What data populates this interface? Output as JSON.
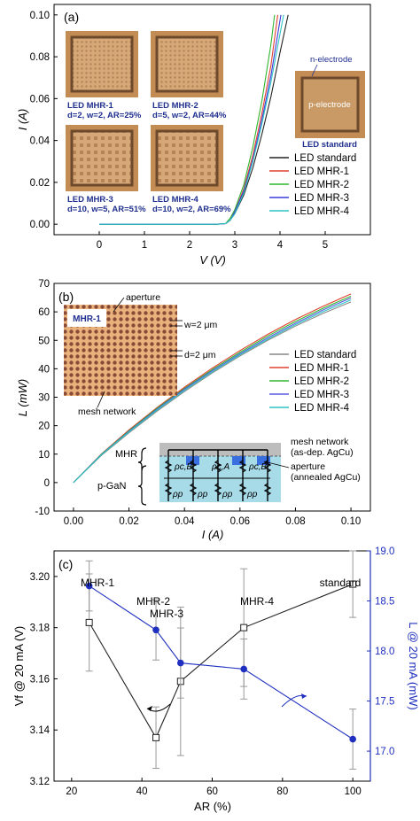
{
  "chart_data": [
    {
      "type": "line",
      "panel_label": "(a)",
      "xlabel": "V (V)",
      "ylabel": "I (A)",
      "xlim": [
        -1,
        6
      ],
      "ylim": [
        -0.005,
        0.105
      ],
      "xticks": [
        0,
        1,
        2,
        3,
        4,
        5
      ],
      "yticks": [
        0.0,
        0.02,
        0.04,
        0.06,
        0.08,
        0.1
      ],
      "ytick_labels": [
        "0.00",
        "0.02",
        "0.04",
        "0.06",
        "0.08",
        "0.10"
      ],
      "legend_placement": "bottom-right",
      "series": [
        {
          "name": "LED standard",
          "color": "#222222",
          "x": [
            0,
            2.6,
            2.8,
            2.9,
            3.0,
            3.2,
            3.4,
            3.6,
            3.8,
            4.0,
            4.18
          ],
          "y": [
            0,
            0,
            0.0003,
            0.002,
            0.005,
            0.014,
            0.027,
            0.043,
            0.061,
            0.082,
            0.1
          ]
        },
        {
          "name": "LED MHR-1",
          "color": "#e0412f",
          "x": [
            0,
            2.6,
            2.8,
            2.9,
            3.0,
            3.2,
            3.4,
            3.6,
            3.8,
            3.95
          ],
          "y": [
            0,
            0,
            0.0003,
            0.002,
            0.006,
            0.017,
            0.033,
            0.053,
            0.076,
            0.1
          ]
        },
        {
          "name": "LED MHR-2",
          "color": "#2fb62f",
          "x": [
            0,
            2.6,
            2.8,
            2.9,
            3.0,
            3.2,
            3.4,
            3.6,
            3.8,
            3.88
          ],
          "y": [
            0,
            0,
            0.0004,
            0.003,
            0.007,
            0.019,
            0.037,
            0.059,
            0.086,
            0.1
          ]
        },
        {
          "name": "LED MHR-3",
          "color": "#3a3ad8",
          "x": [
            0,
            2.6,
            2.8,
            2.9,
            3.0,
            3.2,
            3.4,
            3.6,
            3.8,
            4.02
          ],
          "y": [
            0,
            0,
            0.0003,
            0.002,
            0.006,
            0.016,
            0.031,
            0.05,
            0.071,
            0.1
          ]
        },
        {
          "name": "LED MHR-4",
          "color": "#2ec4c4",
          "x": [
            0,
            2.6,
            2.8,
            2.9,
            3.0,
            3.2,
            3.4,
            3.6,
            3.8,
            4.08
          ],
          "y": [
            0,
            0,
            0.0003,
            0.002,
            0.005,
            0.015,
            0.03,
            0.048,
            0.068,
            0.1
          ]
        }
      ],
      "insets": [
        {
          "label": "LED MHR-1",
          "params": "d=2, w=2, AR=25%"
        },
        {
          "label": "LED MHR-2",
          "params": "d=5, w=2, AR=44%"
        },
        {
          "label": "LED MHR-3",
          "params": "d=10, w=5, AR=51%"
        },
        {
          "label": "LED MHR-4",
          "params": "d=10, w=2, AR=69%"
        },
        {
          "label": "LED standard",
          "params": ""
        }
      ],
      "annotations": {
        "n_electrode": "n-electrode",
        "p_electrode": "p-electrode"
      }
    },
    {
      "type": "line",
      "panel_label": "(b)",
      "xlabel": "I (A)",
      "ylabel": "L (mW)",
      "xlim": [
        -0.007,
        0.107
      ],
      "ylim": [
        -10,
        70
      ],
      "xticks": [
        0.0,
        0.02,
        0.04,
        0.06,
        0.08,
        0.1
      ],
      "xtick_labels": [
        "0.00",
        "0.02",
        "0.04",
        "0.06",
        "0.08",
        "0.10"
      ],
      "yticks": [
        -10,
        0,
        10,
        20,
        30,
        40,
        50,
        60,
        70
      ],
      "legend_placement": "center-right",
      "series": [
        {
          "name": "LED standard",
          "color": "#888888",
          "x": [
            0,
            0.01,
            0.02,
            0.03,
            0.04,
            0.05,
            0.06,
            0.07,
            0.08,
            0.09,
            0.1
          ],
          "y": [
            0,
            9.5,
            17.5,
            25,
            32,
            38.5,
            44.5,
            50,
            55,
            59.5,
            63.5
          ]
        },
        {
          "name": "LED MHR-1",
          "color": "#e0412f",
          "x": [
            0,
            0.01,
            0.02,
            0.03,
            0.04,
            0.05,
            0.06,
            0.07,
            0.08,
            0.09,
            0.1
          ],
          "y": [
            0,
            10,
            18.5,
            26.3,
            33.5,
            40.2,
            46.4,
            52.1,
            57.3,
            62,
            66.3
          ]
        },
        {
          "name": "LED MHR-2",
          "color": "#2fb62f",
          "x": [
            0,
            0.01,
            0.02,
            0.03,
            0.04,
            0.05,
            0.06,
            0.07,
            0.08,
            0.09,
            0.1
          ],
          "y": [
            0,
            9.9,
            18.2,
            26,
            33.1,
            39.7,
            45.8,
            51.5,
            56.6,
            61.3,
            65.5
          ]
        },
        {
          "name": "LED MHR-3",
          "color": "#5a5ae0",
          "x": [
            0,
            0.01,
            0.02,
            0.03,
            0.04,
            0.05,
            0.06,
            0.07,
            0.08,
            0.09,
            0.1
          ],
          "y": [
            0,
            9.8,
            18,
            25.7,
            32.8,
            39.3,
            45.3,
            50.9,
            56,
            60.7,
            64.9
          ]
        },
        {
          "name": "LED MHR-4",
          "color": "#2ec4c4",
          "x": [
            0,
            0.01,
            0.02,
            0.03,
            0.04,
            0.05,
            0.06,
            0.07,
            0.08,
            0.09,
            0.1
          ],
          "y": [
            0,
            9.7,
            17.8,
            25.4,
            32.4,
            38.9,
            44.9,
            50.4,
            55.5,
            60.1,
            64.2
          ]
        }
      ],
      "inset_photo": {
        "label": "MHR-1",
        "aperture": "aperture",
        "w": "w=2 μm",
        "d": "d=2 μm",
        "mesh": "mesh network"
      },
      "inset_schematic": {
        "mhr_label": "MHR",
        "pgan_label": "p-GaN",
        "mesh_label_1": "mesh network",
        "mesh_label_2": "(as-dep. AgCu)",
        "aperture_label_1": "aperture",
        "aperture_label_2": "(annealed AgCu)",
        "rho_top": [
          "ρc,B",
          "ρc,A",
          "ρc,B"
        ],
        "rho_bottom": [
          "ρp",
          "ρp",
          "ρp",
          "ρp"
        ]
      }
    },
    {
      "type": "line",
      "panel_label": "(c)",
      "xlabel": "AR (%)",
      "ylabel_left": "Vf @ 20 mA (V)",
      "ylabel_right": "L @ 20 mA (mW)",
      "xlim": [
        15,
        105
      ],
      "ylim_left": [
        3.12,
        3.21
      ],
      "ylim_right": [
        16.7,
        19.0
      ],
      "xticks": [
        20,
        40,
        60,
        80,
        100
      ],
      "yticks_left": [
        3.12,
        3.14,
        3.16,
        3.18,
        3.2
      ],
      "ytick_labels_left": [
        "3.12",
        "3.14",
        "3.16",
        "3.18",
        "3.20"
      ],
      "yticks_right": [
        17.0,
        17.5,
        18.0,
        18.5,
        19.0
      ],
      "ytick_labels_right": [
        "17.0",
        "17.5",
        "18.0",
        "18.5",
        "19.0"
      ],
      "point_labels": [
        {
          "text": "MHR-1",
          "x": 25
        },
        {
          "text": "MHR-2",
          "x": 44
        },
        {
          "text": "MHR-3",
          "x": 51
        },
        {
          "text": "MHR-4",
          "x": 69
        },
        {
          "text": "standard",
          "x": 100
        }
      ],
      "series": [
        {
          "axis": "left",
          "color": "#222222",
          "marker": "open-square",
          "x": [
            25,
            44,
            51,
            69,
            100
          ],
          "y": [
            3.182,
            3.137,
            3.159,
            3.18,
            3.197
          ],
          "err": [
            0.019,
            0.012,
            0.029,
            0.023,
            0.013
          ]
        },
        {
          "axis": "right",
          "color": "#1f2fbf",
          "marker": "filled-circle",
          "x": [
            25,
            44,
            51,
            69,
            100
          ],
          "y": [
            18.65,
            18.21,
            17.88,
            17.82,
            17.12
          ],
          "err": [
            0.25,
            0.3,
            0.35,
            0.3,
            0.3
          ]
        }
      ],
      "colors": {
        "right_axis": "#1f2fbf"
      }
    }
  ]
}
